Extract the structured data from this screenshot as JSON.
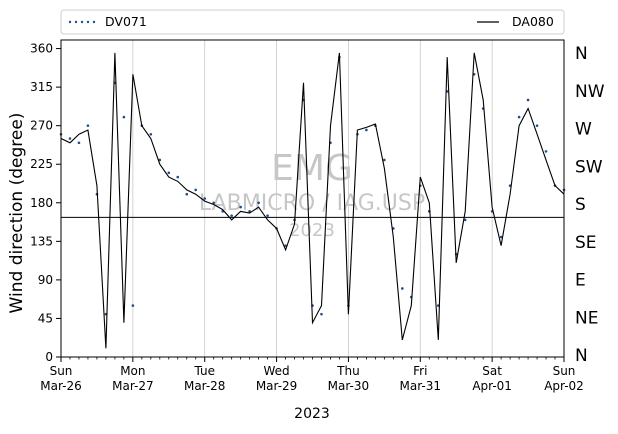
{
  "chart_data": {
    "type": "scatter",
    "xlabel": "2023",
    "ylabel": "Wind direction (degree)",
    "ylim": [
      0,
      370
    ],
    "yticks": [
      0,
      45,
      90,
      135,
      180,
      225,
      270,
      315,
      360
    ],
    "x_start": "2023-03-26",
    "x_end": "2023-04-02",
    "xticks": [
      {
        "day": "Sun",
        "date": "Mar-26"
      },
      {
        "day": "Mon",
        "date": "Mar-27"
      },
      {
        "day": "Tue",
        "date": "Mar-28"
      },
      {
        "day": "Wed",
        "date": "Mar-29"
      },
      {
        "day": "Thu",
        "date": "Mar-30"
      },
      {
        "day": "Fri",
        "date": "Mar-31"
      },
      {
        "day": "Sat",
        "date": "Apr-01"
      },
      {
        "day": "Sun",
        "date": "Apr-02"
      }
    ],
    "compass_labels": [
      "N",
      "NE",
      "E",
      "SE",
      "S",
      "SW",
      "W",
      "NW",
      "N"
    ],
    "reference_line_y": 163,
    "grid": "vertical at day ticks",
    "legend_placement": "top, above plot",
    "series": [
      {
        "name": "DV071",
        "style": "points",
        "color": "#1f4e8c",
        "x": [
          "2023-03-26 00:00",
          "2023-03-26 03:00",
          "2023-03-26 06:00",
          "2023-03-26 09:00",
          "2023-03-26 12:00",
          "2023-03-26 15:00",
          "2023-03-26 18:00",
          "2023-03-26 21:00",
          "2023-03-27 00:00",
          "2023-03-27 03:00",
          "2023-03-27 06:00",
          "2023-03-27 09:00",
          "2023-03-27 12:00",
          "2023-03-27 15:00",
          "2023-03-27 18:00",
          "2023-03-27 21:00",
          "2023-03-28 00:00",
          "2023-03-28 03:00",
          "2023-03-28 06:00",
          "2023-03-28 09:00",
          "2023-03-28 12:00",
          "2023-03-28 15:00",
          "2023-03-28 18:00",
          "2023-03-28 21:00",
          "2023-03-29 00:00",
          "2023-03-29 03:00",
          "2023-03-29 06:00",
          "2023-03-29 09:00",
          "2023-03-29 12:00",
          "2023-03-29 15:00",
          "2023-03-29 18:00",
          "2023-03-29 21:00",
          "2023-03-30 00:00",
          "2023-03-30 03:00",
          "2023-03-30 06:00",
          "2023-03-30 09:00",
          "2023-03-30 12:00",
          "2023-03-30 15:00",
          "2023-03-30 18:00",
          "2023-03-30 21:00",
          "2023-03-31 00:00",
          "2023-03-31 03:00",
          "2023-03-31 06:00",
          "2023-03-31 09:00",
          "2023-03-31 12:00",
          "2023-03-31 15:00",
          "2023-03-31 18:00",
          "2023-03-31 21:00",
          "2023-04-01 00:00",
          "2023-04-01 03:00",
          "2023-04-01 06:00",
          "2023-04-01 09:00",
          "2023-04-01 12:00",
          "2023-04-01 15:00",
          "2023-04-01 18:00",
          "2023-04-01 21:00",
          "2023-04-02 00:00"
        ],
        "values": [
          260,
          255,
          250,
          270,
          190,
          50,
          320,
          280,
          60,
          270,
          260,
          230,
          215,
          210,
          190,
          195,
          185,
          180,
          170,
          165,
          175,
          170,
          180,
          165,
          150,
          130,
          160,
          300,
          60,
          50,
          250,
          350,
          60,
          260,
          265,
          270,
          230,
          150,
          80,
          70,
          200,
          170,
          60,
          310,
          120,
          160,
          330,
          290,
          170,
          140,
          200,
          280,
          300,
          270,
          240,
          200,
          195
        ]
      },
      {
        "name": "DA080",
        "style": "line",
        "color": "#000000",
        "x": [
          "2023-03-26 00:00",
          "2023-03-26 03:00",
          "2023-03-26 06:00",
          "2023-03-26 09:00",
          "2023-03-26 12:00",
          "2023-03-26 15:00",
          "2023-03-26 18:00",
          "2023-03-26 21:00",
          "2023-03-27 00:00",
          "2023-03-27 03:00",
          "2023-03-27 06:00",
          "2023-03-27 09:00",
          "2023-03-27 12:00",
          "2023-03-27 15:00",
          "2023-03-27 18:00",
          "2023-03-27 21:00",
          "2023-03-28 00:00",
          "2023-03-28 03:00",
          "2023-03-28 06:00",
          "2023-03-28 09:00",
          "2023-03-28 12:00",
          "2023-03-28 15:00",
          "2023-03-28 18:00",
          "2023-03-28 21:00",
          "2023-03-29 00:00",
          "2023-03-29 03:00",
          "2023-03-29 06:00",
          "2023-03-29 09:00",
          "2023-03-29 12:00",
          "2023-03-29 15:00",
          "2023-03-29 18:00",
          "2023-03-29 21:00",
          "2023-03-30 00:00",
          "2023-03-30 03:00",
          "2023-03-30 06:00",
          "2023-03-30 09:00",
          "2023-03-30 12:00",
          "2023-03-30 15:00",
          "2023-03-30 18:00",
          "2023-03-30 21:00",
          "2023-03-31 00:00",
          "2023-03-31 03:00",
          "2023-03-31 06:00",
          "2023-03-31 09:00",
          "2023-03-31 12:00",
          "2023-03-31 15:00",
          "2023-03-31 18:00",
          "2023-03-31 21:00",
          "2023-04-01 00:00",
          "2023-04-01 03:00",
          "2023-04-01 06:00",
          "2023-04-01 09:00",
          "2023-04-01 12:00",
          "2023-04-01 15:00",
          "2023-04-01 18:00",
          "2023-04-01 21:00",
          "2023-04-02 00:00"
        ],
        "values": [
          255,
          250,
          260,
          265,
          200,
          10,
          355,
          40,
          330,
          270,
          255,
          225,
          210,
          205,
          195,
          190,
          182,
          178,
          172,
          160,
          170,
          168,
          175,
          160,
          150,
          125,
          155,
          320,
          40,
          60,
          270,
          355,
          50,
          265,
          268,
          272,
          220,
          140,
          20,
          60,
          210,
          180,
          20,
          350,
          110,
          170,
          355,
          300,
          175,
          130,
          190,
          270,
          290,
          260,
          230,
          200,
          190
        ]
      }
    ]
  }
}
